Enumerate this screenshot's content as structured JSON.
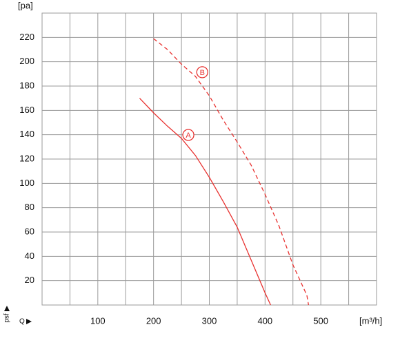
{
  "chart_data": {
    "type": "line",
    "y_label": "[pa]",
    "x_label": "[m³/h]",
    "y_symbol": "psf",
    "x_symbol": "Q",
    "xlim": [
      0,
      600
    ],
    "xticks": [
      100,
      200,
      300,
      400,
      500
    ],
    "x_minor_grid": [
      50,
      150,
      250,
      350,
      450,
      550
    ],
    "ylim": [
      0,
      240
    ],
    "yticks": [
      20,
      40,
      60,
      80,
      100,
      120,
      140,
      160,
      180,
      200,
      220
    ],
    "grid": true,
    "series": [
      {
        "name": "A",
        "color": "#e8312f",
        "dashed": false,
        "x": [
          175,
          200,
          225,
          250,
          275,
          300,
          325,
          350,
          375,
          400,
          410
        ],
        "values": [
          170,
          158,
          147,
          137,
          123,
          105,
          85,
          64,
          37,
          10,
          0
        ]
      },
      {
        "name": "B",
        "color": "#e8312f",
        "dashed": true,
        "x": [
          200,
          225,
          250,
          275,
          300,
          325,
          350,
          375,
          400,
          425,
          450,
          475,
          478
        ],
        "values": [
          219,
          210,
          198,
          188,
          172,
          152,
          134,
          115,
          91,
          65,
          33,
          8,
          0
        ]
      }
    ]
  }
}
